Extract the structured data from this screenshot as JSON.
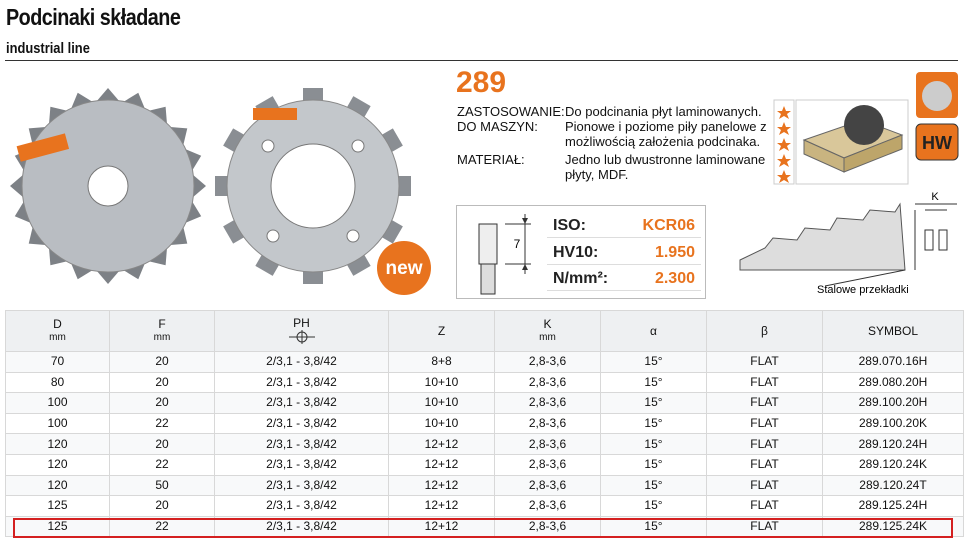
{
  "header": {
    "title": "Podcinaki składane",
    "subtitle": "industrial line"
  },
  "product": {
    "code": "289",
    "badge_new": "new",
    "badge_material": "HW",
    "specs": [
      {
        "label": "ZASTOSOWANIE:",
        "text": "Do podcinania płyt laminowanych."
      },
      {
        "label": "DO MASZYN:",
        "text": "Pionowe i poziome piły panelowe z możliwością założenia podcinaka."
      },
      {
        "label": "MATERIAŁ:",
        "text": "Jedno lub dwustronne laminowane płyty, MDF."
      }
    ],
    "dimension": "7",
    "properties": [
      {
        "label": "ISO:",
        "value": "KCR06"
      },
      {
        "label": "HV10:",
        "value": "1.950"
      },
      {
        "label": "N/mm²:",
        "value": "2.300"
      }
    ],
    "diagram_k": "K",
    "diagram_caption": "Stalowe przekładki"
  },
  "table": {
    "columns": [
      {
        "name": "D",
        "unit": "mm"
      },
      {
        "name": "F",
        "unit": "mm"
      },
      {
        "name": "PH"
      },
      {
        "name": "Z"
      },
      {
        "name": "K",
        "unit": "mm"
      },
      {
        "name": "α"
      },
      {
        "name": "β"
      },
      {
        "name": "SYMBOL"
      }
    ],
    "rows": [
      [
        "70",
        "20",
        "2/3,1 - 3,8/42",
        "8+8",
        "2,8-3,6",
        "15°",
        "FLAT",
        "289.070.16H"
      ],
      [
        "80",
        "20",
        "2/3,1 - 3,8/42",
        "10+10",
        "2,8-3,6",
        "15°",
        "FLAT",
        "289.080.20H"
      ],
      [
        "100",
        "20",
        "2/3,1 - 3,8/42",
        "10+10",
        "2,8-3,6",
        "15°",
        "FLAT",
        "289.100.20H"
      ],
      [
        "100",
        "22",
        "2/3,1 - 3,8/42",
        "10+10",
        "2,8-3,6",
        "15°",
        "FLAT",
        "289.100.20K"
      ],
      [
        "120",
        "20",
        "2/3,1 - 3,8/42",
        "12+12",
        "2,8-3,6",
        "15°",
        "FLAT",
        "289.120.24H"
      ],
      [
        "120",
        "22",
        "2/3,1 - 3,8/42",
        "12+12",
        "2,8-3,6",
        "15°",
        "FLAT",
        "289.120.24K"
      ],
      [
        "120",
        "50",
        "2/3,1 - 3,8/42",
        "12+12",
        "2,8-3,6",
        "15°",
        "FLAT",
        "289.120.24T"
      ],
      [
        "125",
        "20",
        "2/3,1 - 3,8/42",
        "12+12",
        "2,8-3,6",
        "15°",
        "FLAT",
        "289.125.24H"
      ],
      [
        "125",
        "22",
        "2/3,1 - 3,8/42",
        "12+12",
        "2,8-3,6",
        "15°",
        "FLAT",
        "289.125.24K"
      ]
    ]
  }
}
